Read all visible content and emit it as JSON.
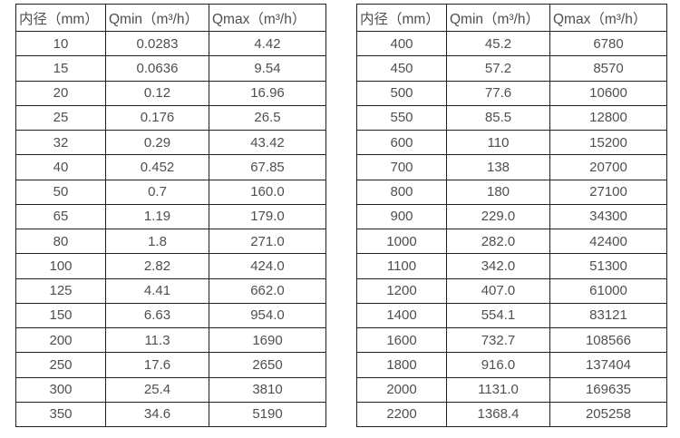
{
  "colors": {
    "background": "#ffffff",
    "text": "#4f4f4f",
    "border": "#1f1f1f"
  },
  "chart_data": [
    {
      "type": "table",
      "name": "flow-range-table-dn10-350",
      "columns": [
        "内径（mm）",
        "Qmin（m³/h）",
        "Qmax（m³/h）"
      ],
      "rows": [
        [
          "10",
          "0.0283",
          "4.42"
        ],
        [
          "15",
          "0.0636",
          "9.54"
        ],
        [
          "20",
          "0.12",
          "16.96"
        ],
        [
          "25",
          "0.176",
          "26.5"
        ],
        [
          "32",
          "0.29",
          "43.42"
        ],
        [
          "40",
          "0.452",
          "67.85"
        ],
        [
          "50",
          "0.7",
          "160.0"
        ],
        [
          "65",
          "1.19",
          "179.0"
        ],
        [
          "80",
          "1.8",
          "271.0"
        ],
        [
          "100",
          "2.82",
          "424.0"
        ],
        [
          "125",
          "4.41",
          "662.0"
        ],
        [
          "150",
          "6.63",
          "954.0"
        ],
        [
          "200",
          "11.3",
          "1690"
        ],
        [
          "250",
          "17.6",
          "2650"
        ],
        [
          "300",
          "25.4",
          "3810"
        ],
        [
          "350",
          "34.6",
          "5190"
        ]
      ]
    },
    {
      "type": "table",
      "name": "flow-range-table-dn400-2200",
      "columns": [
        "内径（mm）",
        "Qmin（m³/h）",
        "Qmax（m³/h）"
      ],
      "rows": [
        [
          "400",
          "45.2",
          "6780"
        ],
        [
          "450",
          "57.2",
          "8570"
        ],
        [
          "500",
          "77.6",
          "10600"
        ],
        [
          "550",
          "85.5",
          "12800"
        ],
        [
          "600",
          "110",
          "15200"
        ],
        [
          "700",
          "138",
          "20700"
        ],
        [
          "800",
          "180",
          "27100"
        ],
        [
          "900",
          "229.0",
          "34300"
        ],
        [
          "1000",
          "282.0",
          "42400"
        ],
        [
          "1100",
          "342.0",
          "51300"
        ],
        [
          "1200",
          "407.0",
          "61000"
        ],
        [
          "1400",
          "554.1",
          "83121"
        ],
        [
          "1600",
          "732.7",
          "108566"
        ],
        [
          "1800",
          "916.0",
          "137404"
        ],
        [
          "2000",
          "1131.0",
          "169635"
        ],
        [
          "2200",
          "1368.4",
          "205258"
        ]
      ]
    }
  ]
}
